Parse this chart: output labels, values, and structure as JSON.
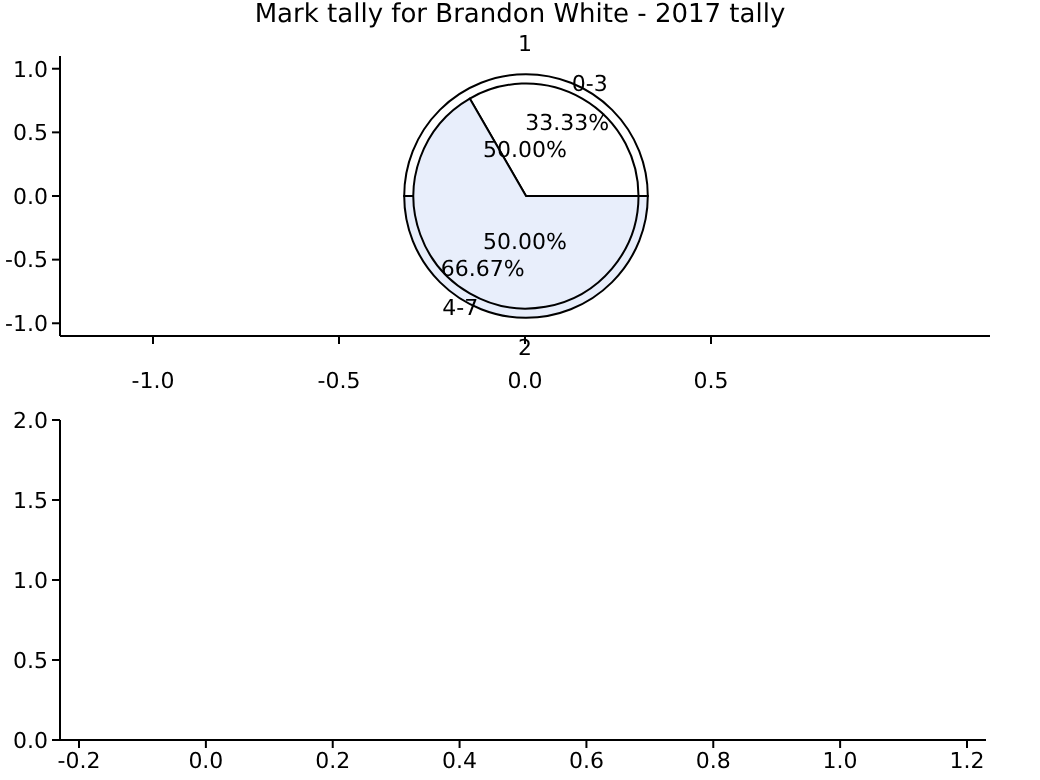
{
  "chart_data": [
    {
      "type": "scatter",
      "title": "Mark tally for Brandon White - 2017 tally",
      "xlim": [
        -1.25,
        1.25
      ],
      "ylim": [
        -1.1,
        1.1
      ],
      "xticks": [
        {
          "value": -1,
          "label": "-1.0"
        },
        {
          "value": -0.5,
          "label": "-0.5"
        },
        {
          "value": 0,
          "label": "0.0"
        },
        {
          "value": 0.5,
          "label": "0.5"
        }
      ],
      "yticks": [
        {
          "value": -1,
          "label": "-1.0"
        },
        {
          "value": -0.5,
          "label": "-0.5"
        },
        {
          "value": 0,
          "label": "0.0"
        },
        {
          "value": 0.5,
          "label": "0.5"
        },
        {
          "value": 1,
          "label": "1.0"
        }
      ]
    },
    {
      "type": "pie",
      "categories": [
        "1",
        "2"
      ],
      "values": [
        50,
        50
      ],
      "colors": [
        "#ffffff",
        "#e8eefb"
      ],
      "value_labels": [
        "50.00%",
        "50.00%"
      ]
    },
    {
      "type": "pie",
      "categories": [
        "0-3",
        "4-7"
      ],
      "values": [
        33.33,
        66.67
      ],
      "colors": [
        "#ffffff",
        "#e8eefb"
      ],
      "value_labels": [
        "33.33%",
        "66.67%"
      ]
    },
    {
      "type": "scatter",
      "xlim": [
        -0.23,
        1.23
      ],
      "ylim": [
        0,
        2
      ],
      "xticks": [
        {
          "value": -0.2,
          "label": "-0.2"
        },
        {
          "value": 0,
          "label": "0.0"
        },
        {
          "value": 0.2,
          "label": "0.2"
        },
        {
          "value": 0.4,
          "label": "0.4"
        },
        {
          "value": 0.6,
          "label": "0.6"
        },
        {
          "value": 0.8,
          "label": "0.8"
        },
        {
          "value": 1,
          "label": "1.0"
        },
        {
          "value": 1.2,
          "label": "1.2"
        }
      ],
      "yticks": [
        {
          "value": 0,
          "label": "0.0"
        },
        {
          "value": 0.5,
          "label": "0.5"
        },
        {
          "value": 1,
          "label": "1.0"
        },
        {
          "value": 1.5,
          "label": "1.5"
        },
        {
          "value": 2,
          "label": "2.0"
        }
      ]
    }
  ]
}
